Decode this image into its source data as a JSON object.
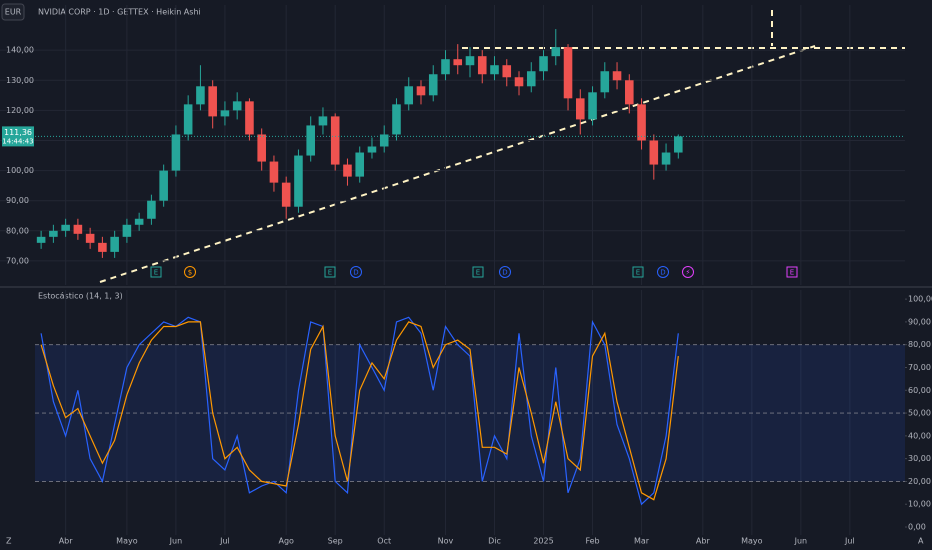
{
  "header": {
    "currency": "EUR",
    "title": "NVIDIA CORP · 1D · GETTEX · Heikin Ashi"
  },
  "chart_data": [
    {
      "type": "candlestick",
      "up_color": "#26a69a",
      "down_color": "#ef5350",
      "open": [
        76,
        78,
        80,
        82,
        79,
        76,
        73,
        78,
        82,
        84,
        90,
        100,
        112,
        122,
        128,
        118,
        120,
        123,
        112,
        103,
        96,
        88,
        105,
        115,
        118,
        102,
        98,
        106,
        108,
        112,
        122,
        128,
        125,
        132,
        137,
        135,
        138,
        132,
        135,
        131,
        128,
        133,
        138,
        141,
        124,
        117,
        126,
        133,
        130,
        122,
        110,
        102,
        106,
        null,
        null,
        null,
        null,
        null,
        null,
        null,
        null,
        null,
        null,
        null,
        null,
        null,
        null,
        null,
        null,
        null,
        null
      ],
      "high": [
        80,
        82,
        84,
        84,
        81,
        78,
        80,
        84,
        86,
        92,
        102,
        115,
        125,
        135,
        130,
        123,
        126,
        124,
        114,
        105,
        98,
        107,
        118,
        121,
        119,
        104,
        108,
        111,
        115,
        124,
        131,
        130,
        135,
        140,
        142,
        141,
        140,
        138,
        137,
        133,
        136,
        140,
        147,
        142,
        127,
        128,
        136,
        136,
        132,
        124,
        112,
        109,
        112,
        null,
        null,
        null,
        null,
        null,
        null,
        null,
        null,
        null,
        null,
        null,
        null,
        null,
        null,
        null,
        null,
        null,
        null
      ],
      "low": [
        74,
        76,
        78,
        77,
        74,
        71,
        71,
        76,
        80,
        82,
        88,
        98,
        110,
        120,
        114,
        115,
        117,
        110,
        100,
        93,
        84,
        86,
        103,
        112,
        100,
        95,
        96,
        104,
        106,
        110,
        120,
        122,
        123,
        130,
        132,
        131,
        129,
        130,
        128,
        125,
        126,
        130,
        135,
        120,
        112,
        115,
        124,
        127,
        119,
        107,
        97,
        100,
        104,
        null,
        null,
        null,
        null,
        null,
        null,
        null,
        null,
        null,
        null,
        null,
        null,
        null,
        null,
        null,
        null,
        null,
        null
      ],
      "close": [
        78,
        80,
        82,
        79,
        76,
        73,
        78,
        82,
        84,
        90,
        100,
        112,
        122,
        128,
        118,
        120,
        123,
        112,
        103,
        96,
        88,
        105,
        115,
        118,
        102,
        98,
        106,
        108,
        112,
        122,
        128,
        125,
        132,
        137,
        135,
        138,
        132,
        135,
        131,
        128,
        133,
        138,
        141,
        124,
        117,
        126,
        133,
        130,
        122,
        110,
        102,
        106,
        111.36,
        null,
        null,
        null,
        null,
        null,
        null,
        null,
        null,
        null,
        null,
        null,
        null,
        null,
        null,
        null,
        null,
        null,
        null
      ],
      "current_price": {
        "value": 111.36,
        "label": "111,36"
      },
      "countdown": "14:44:43",
      "ylim": [
        62,
        155
      ],
      "yticks": [
        {
          "value": 70,
          "label": "70,00"
        },
        {
          "value": 80,
          "label": "80,00"
        },
        {
          "value": 90,
          "label": "90,00"
        },
        {
          "value": 100,
          "label": "100,00"
        },
        {
          "value": 110,
          "label": "110,00"
        },
        {
          "value": 120,
          "label": "120,00"
        },
        {
          "value": 130,
          "label": "130,00"
        },
        {
          "value": 140,
          "label": "140,00"
        }
      ],
      "events": [
        "E",
        "$",
        "E",
        "D",
        "E",
        "D",
        "E",
        "D",
        "⚡",
        "E"
      ]
    },
    {
      "type": "line",
      "title": "Estocástico (14, 1, 3)",
      "categories": [
        null,
        null,
        "Abr",
        null,
        null,
        null,
        null,
        "Mayo",
        null,
        null,
        null,
        "Jun",
        null,
        null,
        null,
        "Jul",
        null,
        null,
        null,
        null,
        "Ago",
        null,
        null,
        null,
        "Sep",
        null,
        null,
        null,
        "Oct",
        null,
        null,
        null,
        null,
        "Nov",
        null,
        null,
        null,
        "Dic",
        null,
        null,
        null,
        "2025",
        null,
        null,
        null,
        "Feb",
        null,
        null,
        null,
        "Mar",
        null,
        null,
        null,
        null,
        "Abr",
        null,
        null,
        null,
        "Mayo",
        null,
        null,
        null,
        "Jun",
        null,
        null,
        null,
        "Jul",
        null,
        null,
        null,
        null
      ],
      "series": [
        {
          "color": "#2962ff",
          "values": [
            85,
            55,
            40,
            60,
            30,
            20,
            45,
            70,
            80,
            85,
            90,
            88,
            92,
            90,
            30,
            25,
            40,
            15,
            18,
            20,
            15,
            60,
            90,
            88,
            20,
            15,
            80,
            70,
            60,
            90,
            92,
            85,
            60,
            88,
            80,
            75,
            20,
            40,
            30,
            85,
            40,
            20,
            70,
            15,
            30,
            90,
            80,
            45,
            30,
            10,
            15,
            40,
            85,
            null,
            null,
            null,
            null,
            null,
            null,
            null,
            null,
            null,
            null,
            null,
            null,
            null,
            null,
            null,
            null,
            null,
            null
          ]
        },
        {
          "color": "#ff9800",
          "values": [
            80,
            62,
            48,
            52,
            40,
            28,
            38,
            58,
            72,
            82,
            88,
            88,
            90,
            90,
            50,
            30,
            35,
            25,
            20,
            19,
            18,
            45,
            78,
            88,
            40,
            20,
            60,
            72,
            65,
            82,
            90,
            88,
            70,
            80,
            82,
            78,
            35,
            35,
            32,
            70,
            50,
            28,
            55,
            30,
            25,
            75,
            85,
            55,
            35,
            15,
            12,
            30,
            75,
            null,
            null,
            null,
            null,
            null,
            null,
            null,
            null,
            null,
            null,
            null,
            null,
            null,
            null,
            null,
            null,
            null,
            null
          ]
        }
      ],
      "band": [
        20,
        80
      ],
      "ylim": [
        -3.5,
        104
      ],
      "yticks": [
        {
          "value": 0,
          "label": "0,00"
        },
        {
          "value": 10,
          "label": "10,00"
        },
        {
          "value": 20,
          "label": "20,00"
        },
        {
          "value": 30,
          "label": "30,00"
        },
        {
          "value": 40,
          "label": "40,00"
        },
        {
          "value": 50,
          "label": "50,00"
        },
        {
          "value": 60,
          "label": "60,00"
        },
        {
          "value": 70,
          "label": "70,00"
        },
        {
          "value": 80,
          "label": "80,00"
        },
        {
          "value": 90,
          "label": "90,00"
        },
        {
          "value": 100,
          "label": "100,00"
        }
      ]
    }
  ]
}
